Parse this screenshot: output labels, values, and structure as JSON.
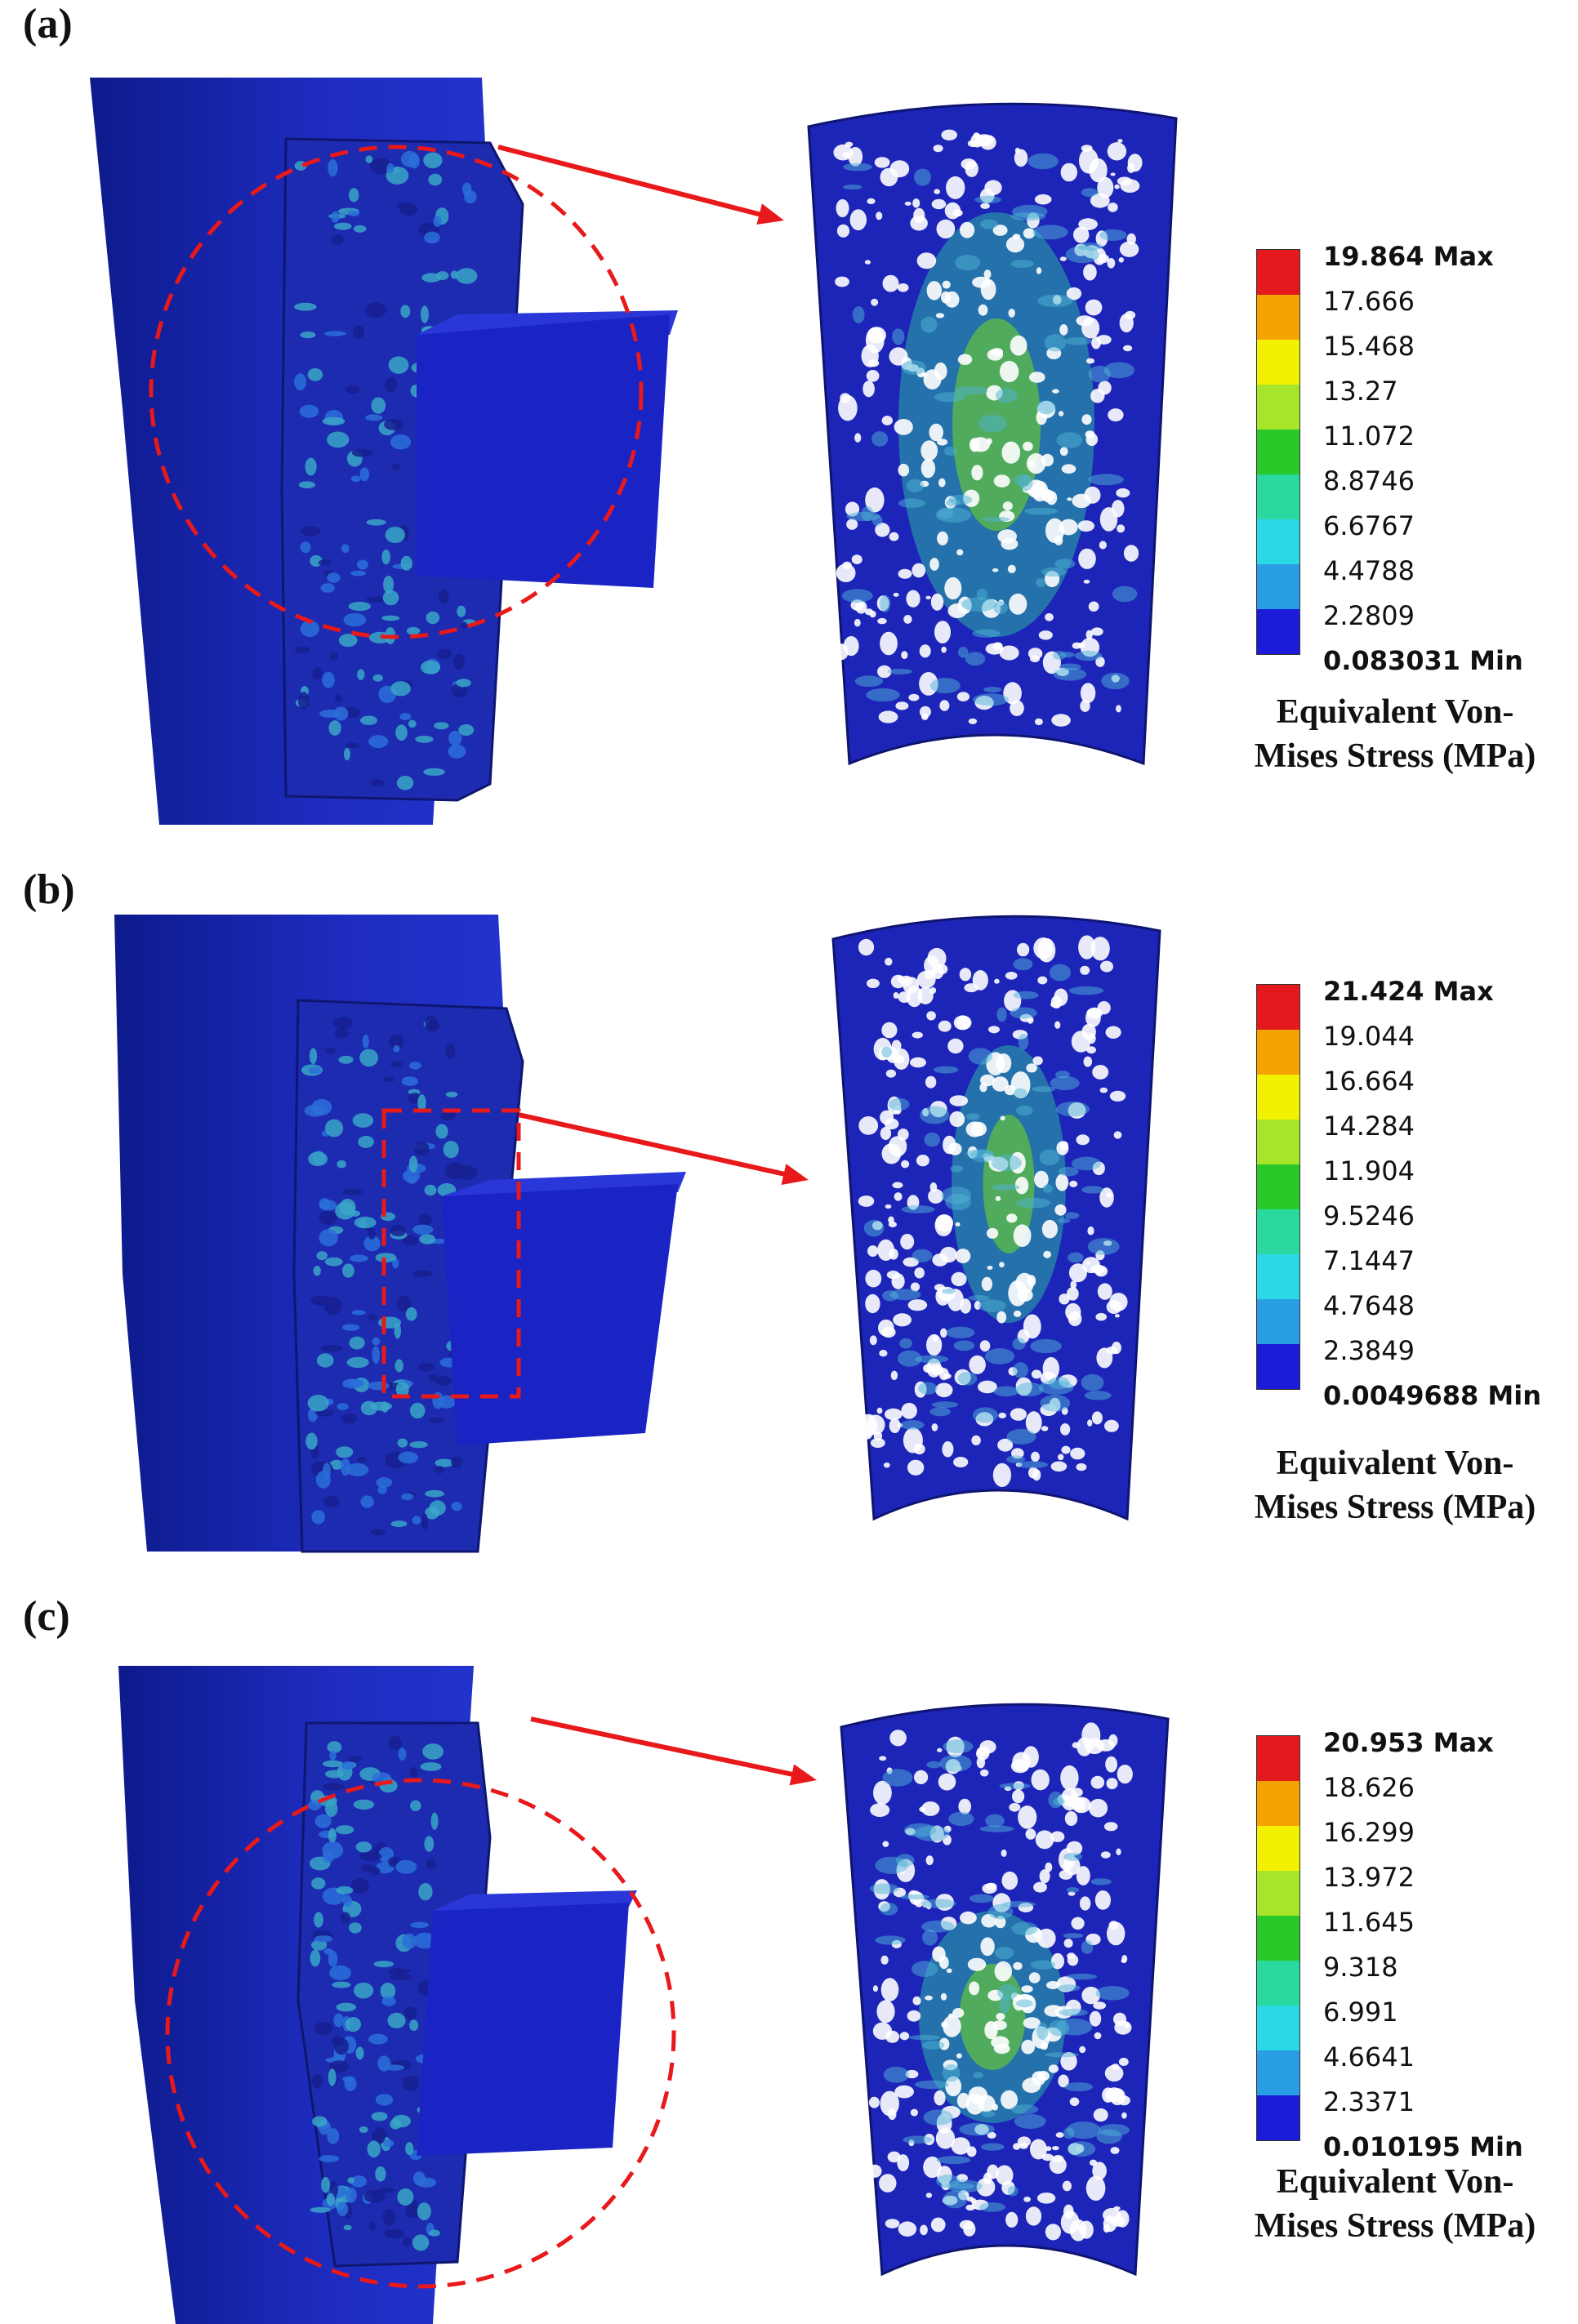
{
  "panels": [
    {
      "label": "(a)",
      "legend": {
        "ticks": [
          "19.864 Max",
          "17.666",
          "15.468",
          "13.27",
          "11.072",
          "8.8746",
          "6.6767",
          "4.4788",
          "2.2809",
          "0.083031 Min"
        ],
        "title_line1": "Equivalent Von-",
        "title_line2": "Mises Stress (MPa)"
      },
      "highlight_shape": "circle"
    },
    {
      "label": "(b)",
      "legend": {
        "ticks": [
          "21.424 Max",
          "19.044",
          "16.664",
          "14.284",
          "11.904",
          "9.5246",
          "7.1447",
          "4.7648",
          "2.3849",
          "0.0049688 Min"
        ],
        "title_line1": "Equivalent Von-",
        "title_line2": "Mises Stress (MPa)"
      },
      "highlight_shape": "rectangle"
    },
    {
      "label": "(c)",
      "legend": {
        "ticks": [
          "20.953 Max",
          "18.626",
          "16.299",
          "13.972",
          "11.645",
          "9.318",
          "6.991",
          "4.6641",
          "2.3371",
          "0.010195 Min"
        ],
        "title_line1": "Equivalent Von-",
        "title_line2": "Mises Stress (MPa)"
      },
      "highlight_shape": "circle"
    }
  ],
  "colors": {
    "contour": [
      "#e5191d",
      "#f5a300",
      "#f2f200",
      "#a6e52a",
      "#2ac92a",
      "#2ad9a0",
      "#2ad9e5",
      "#2a9ee5",
      "#1b1bd9"
    ],
    "bone": "#1f2ec2",
    "block": "#1a24c4",
    "accent_arrow": "#e8191a"
  }
}
